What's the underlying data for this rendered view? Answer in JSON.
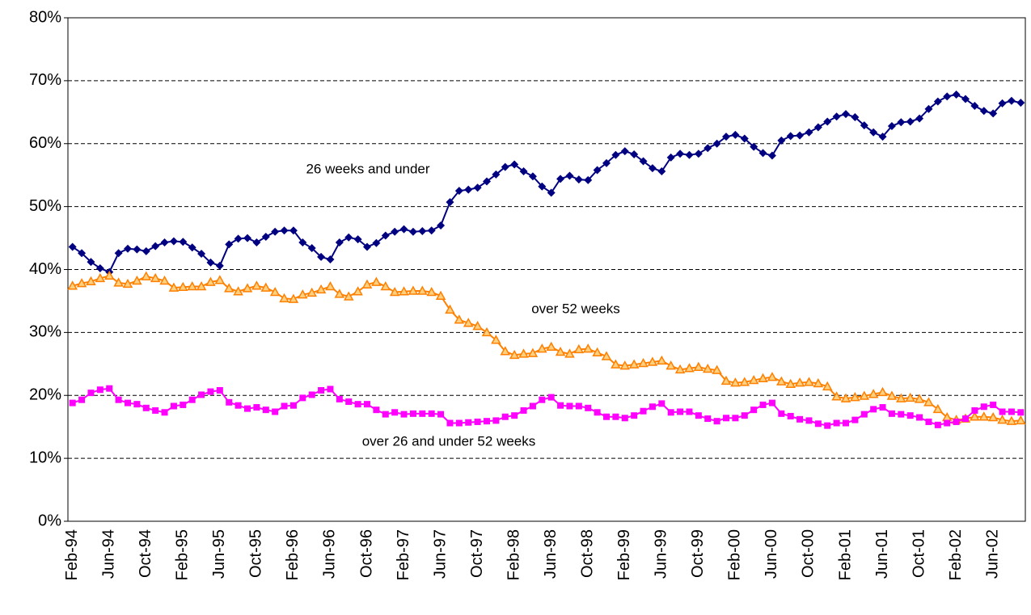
{
  "chart_data": {
    "type": "line",
    "categories": [
      "Feb-94",
      null,
      null,
      null,
      "Jun-94",
      null,
      null,
      null,
      "Oct-94",
      null,
      null,
      null,
      "Feb-95",
      null,
      null,
      null,
      "Jun-95",
      null,
      null,
      null,
      "Oct-95",
      null,
      null,
      null,
      "Feb-96",
      null,
      null,
      null,
      "Jun-96",
      null,
      null,
      null,
      "Oct-96",
      null,
      null,
      null,
      "Feb-97",
      null,
      null,
      null,
      "Jun-97",
      null,
      null,
      null,
      "Oct-97",
      null,
      null,
      null,
      "Feb-98",
      null,
      null,
      null,
      "Jun-98",
      null,
      null,
      null,
      "Oct-98",
      null,
      null,
      null,
      "Feb-99",
      null,
      null,
      null,
      "Jun-99",
      null,
      null,
      null,
      "Oct-99",
      null,
      null,
      null,
      "Feb-00",
      null,
      null,
      null,
      "Jun-00",
      null,
      null,
      null,
      "Oct-00",
      null,
      null,
      null,
      "Feb-01",
      null,
      null,
      null,
      "Jun-01",
      null,
      null,
      null,
      "Oct-01",
      null,
      null,
      null,
      "Feb-02",
      null,
      null,
      null,
      "Jun-02",
      null,
      null,
      null
    ],
    "series": [
      {
        "name": "26 weeks and under",
        "color": "#000080",
        "marker": "diamond",
        "values": [
          43.6,
          42.6,
          41.2,
          40.2,
          39.6,
          42.6,
          43.3,
          43.2,
          42.9,
          43.7,
          44.3,
          44.5,
          44.4,
          43.5,
          42.5,
          41.1,
          40.6,
          44.0,
          44.9,
          45.0,
          44.3,
          45.2,
          46.0,
          46.2,
          46.2,
          44.3,
          43.4,
          42.0,
          41.6,
          44.3,
          45.1,
          44.8,
          43.6,
          44.2,
          45.4,
          46.0,
          46.4,
          46.0,
          46.1,
          46.2,
          47.0,
          50.7,
          52.5,
          52.7,
          53.0,
          54.0,
          55.1,
          56.3,
          56.7,
          55.6,
          54.8,
          53.2,
          52.2,
          54.4,
          54.9,
          54.3,
          54.2,
          55.8,
          56.9,
          58.2,
          58.8,
          58.3,
          57.2,
          56.1,
          55.6,
          57.8,
          58.4,
          58.2,
          58.4,
          59.3,
          60.0,
          61.1,
          61.4,
          60.8,
          59.5,
          58.5,
          58.1,
          60.5,
          61.2,
          61.3,
          61.8,
          62.6,
          63.5,
          64.3,
          64.7,
          64.2,
          62.9,
          61.8,
          61.1,
          62.8,
          63.4,
          63.5,
          64.0,
          65.5,
          66.7,
          67.5,
          67.8,
          67.1,
          66.0,
          65.2,
          64.8,
          66.4,
          66.8,
          66.5
        ]
      },
      {
        "name": "over 52 weeks",
        "color": "#ff8000",
        "marker": "triangle",
        "values": [
          37.4,
          37.8,
          38.1,
          38.6,
          39.0,
          37.9,
          37.7,
          38.2,
          38.9,
          38.6,
          38.2,
          37.1,
          37.2,
          37.3,
          37.3,
          38.0,
          38.3,
          37.0,
          36.5,
          37.0,
          37.4,
          37.1,
          36.4,
          35.4,
          35.3,
          36.0,
          36.3,
          36.8,
          37.3,
          36.1,
          35.7,
          36.5,
          37.6,
          38.0,
          37.3,
          36.4,
          36.5,
          36.6,
          36.6,
          36.4,
          35.8,
          33.6,
          32.0,
          31.5,
          31.0,
          30.0,
          28.8,
          27.0,
          26.4,
          26.6,
          26.7,
          27.4,
          27.7,
          26.9,
          26.6,
          27.3,
          27.4,
          26.8,
          26.2,
          24.9,
          24.7,
          24.9,
          25.1,
          25.3,
          25.5,
          24.7,
          24.1,
          24.3,
          24.5,
          24.2,
          24.0,
          22.3,
          22.0,
          22.1,
          22.4,
          22.7,
          22.9,
          22.2,
          21.8,
          22.0,
          22.1,
          21.9,
          21.4,
          19.8,
          19.5,
          19.7,
          19.9,
          20.2,
          20.5,
          19.9,
          19.5,
          19.6,
          19.4,
          18.9,
          17.8,
          16.5,
          16.1,
          16.3,
          16.6,
          16.6,
          16.5,
          16.1,
          15.9,
          16.0
        ]
      },
      {
        "name": "over 26 and under 52 weeks",
        "color": "#ff00ff",
        "marker": "square",
        "values": [
          18.8,
          19.3,
          20.4,
          20.9,
          21.1,
          19.3,
          18.8,
          18.6,
          18.0,
          17.6,
          17.3,
          18.3,
          18.5,
          19.3,
          20.1,
          20.6,
          20.8,
          18.9,
          18.4,
          17.9,
          18.1,
          17.7,
          17.4,
          18.3,
          18.4,
          19.6,
          20.1,
          20.8,
          21.0,
          19.4,
          19.0,
          18.6,
          18.6,
          17.7,
          17.0,
          17.3,
          17.0,
          17.1,
          17.1,
          17.1,
          17.0,
          15.6,
          15.6,
          15.7,
          15.8,
          15.9,
          16.0,
          16.6,
          16.8,
          17.6,
          18.3,
          19.3,
          19.7,
          18.4,
          18.3,
          18.3,
          18.0,
          17.3,
          16.6,
          16.6,
          16.4,
          16.8,
          17.5,
          18.2,
          18.7,
          17.3,
          17.4,
          17.4,
          16.8,
          16.3,
          15.9,
          16.4,
          16.4,
          16.8,
          17.7,
          18.5,
          18.8,
          17.1,
          16.7,
          16.2,
          16.0,
          15.5,
          15.2,
          15.6,
          15.6,
          16.1,
          17.0,
          17.8,
          18.1,
          17.1,
          17.0,
          16.8,
          16.5,
          15.8,
          15.3,
          15.6,
          15.8,
          16.3,
          17.6,
          18.2,
          18.5,
          17.4,
          17.4,
          17.3
        ]
      }
    ],
    "ylim": [
      0,
      80
    ],
    "yticks": [
      {
        "value": 0,
        "label": "0%"
      },
      {
        "value": 10,
        "label": "10%"
      },
      {
        "value": 20,
        "label": "20%"
      },
      {
        "value": 30,
        "label": "30%"
      },
      {
        "value": 40,
        "label": "40%"
      },
      {
        "value": 50,
        "label": "50%"
      },
      {
        "value": 60,
        "label": "60%"
      },
      {
        "value": 70,
        "label": "70%"
      },
      {
        "value": 80,
        "label": "80%"
      }
    ],
    "grid": true,
    "legend": "none"
  }
}
